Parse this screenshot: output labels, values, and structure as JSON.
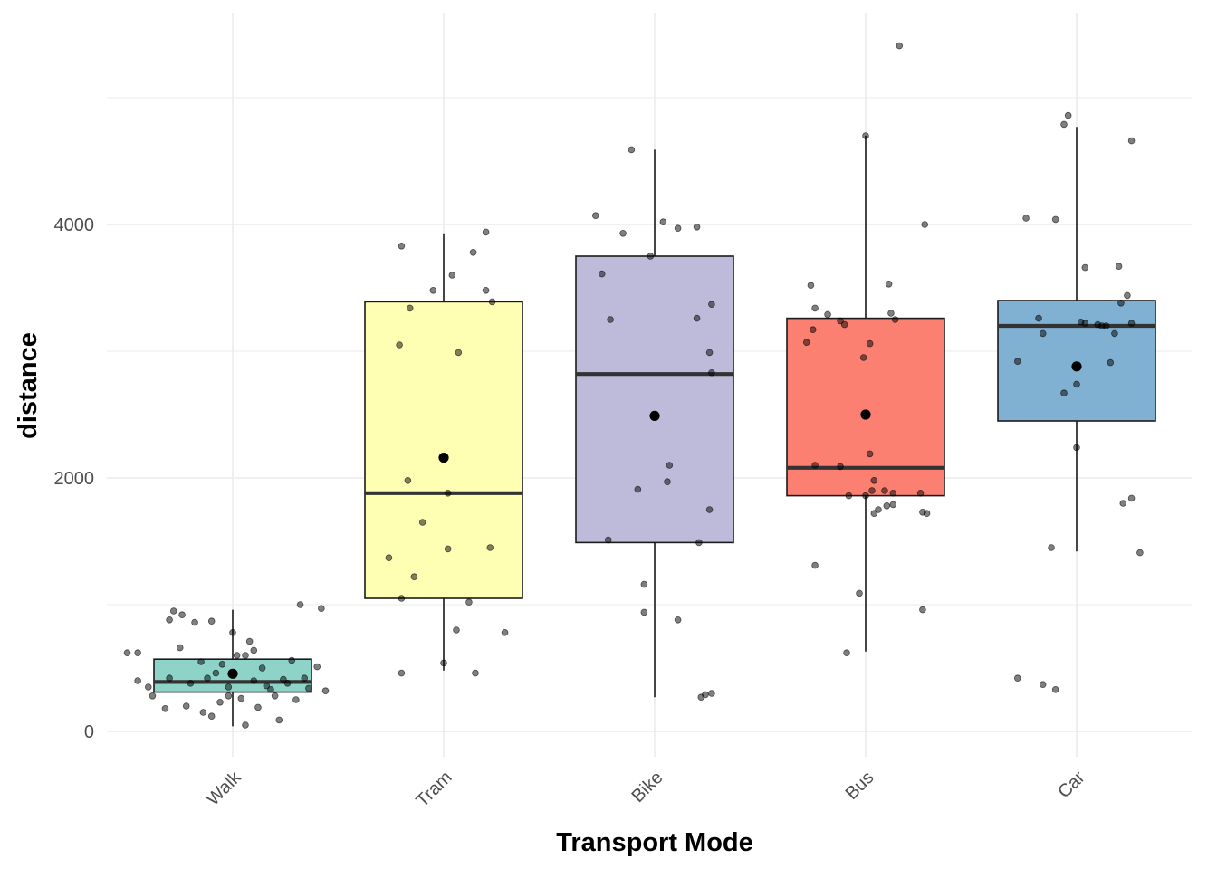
{
  "chart_data": {
    "type": "boxplot",
    "xlabel": "Transport Mode",
    "ylabel": "distance",
    "ylim": [
      -250,
      5650
    ],
    "yticks": [
      0,
      2000,
      4000
    ],
    "y_tick_labels": [
      "0",
      "2000",
      "4000"
    ],
    "grid": true,
    "legend": "none",
    "point_color": "#000000",
    "categories": [
      "Walk",
      "Tram",
      "Bike",
      "Bus",
      "Car"
    ],
    "boxes": [
      {
        "category": "Walk",
        "color": "#8DD3C7",
        "whisker_low": 40,
        "q1": 310,
        "median": 390,
        "q3": 570,
        "whisker_high": 960,
        "mean": 455,
        "points": [
          [
            -0.5,
            620
          ],
          [
            -0.28,
            950
          ],
          [
            -0.24,
            920
          ],
          [
            -0.18,
            860
          ],
          [
            -0.45,
            620
          ],
          [
            -0.3,
            880
          ],
          [
            -0.1,
            870
          ],
          [
            0.0,
            780
          ],
          [
            0.08,
            710
          ],
          [
            0.32,
            1000
          ],
          [
            0.42,
            970
          ],
          [
            -0.25,
            660
          ],
          [
            -0.15,
            550
          ],
          [
            -0.05,
            530
          ],
          [
            0.06,
            600
          ],
          [
            0.14,
            500
          ],
          [
            0.24,
            410
          ],
          [
            0.28,
            560
          ],
          [
            0.4,
            510
          ],
          [
            -0.4,
            350
          ],
          [
            -0.3,
            420
          ],
          [
            -0.2,
            380
          ],
          [
            -0.12,
            420
          ],
          [
            -0.02,
            350
          ],
          [
            0.1,
            400
          ],
          [
            0.18,
            330
          ],
          [
            0.26,
            380
          ],
          [
            0.34,
            420
          ],
          [
            0.36,
            340
          ],
          [
            -0.38,
            280
          ],
          [
            -0.22,
            200
          ],
          [
            -0.14,
            150
          ],
          [
            -0.06,
            230
          ],
          [
            0.04,
            260
          ],
          [
            0.12,
            190
          ],
          [
            0.2,
            280
          ],
          [
            0.3,
            250
          ],
          [
            -0.32,
            180
          ],
          [
            -0.1,
            120
          ],
          [
            0.06,
            50
          ],
          [
            0.22,
            90
          ],
          [
            -0.45,
            400
          ],
          [
            -0.02,
            280
          ],
          [
            0.16,
            360
          ],
          [
            0.44,
            320
          ],
          [
            -0.08,
            460
          ],
          [
            0.02,
            600
          ],
          [
            0.1,
            640
          ]
        ]
      },
      {
        "category": "Tram",
        "color": "#FFFFB3",
        "whisker_low": 480,
        "q1": 1050,
        "median": 1880,
        "q3": 3390,
        "whisker_high": 3930,
        "mean": 2160,
        "points": [
          [
            -0.2,
            3830
          ],
          [
            0.14,
            3780
          ],
          [
            0.2,
            3940
          ],
          [
            0.04,
            3600
          ],
          [
            -0.05,
            3480
          ],
          [
            0.2,
            3480
          ],
          [
            0.23,
            3390
          ],
          [
            -0.16,
            3340
          ],
          [
            -0.21,
            3050
          ],
          [
            0.07,
            2990
          ],
          [
            -0.17,
            1980
          ],
          [
            0.02,
            1880
          ],
          [
            -0.1,
            1650
          ],
          [
            0.02,
            1440
          ],
          [
            0.22,
            1450
          ],
          [
            -0.26,
            1370
          ],
          [
            -0.14,
            1220
          ],
          [
            0.12,
            1020
          ],
          [
            -0.2,
            1050
          ],
          [
            0.06,
            800
          ],
          [
            0.29,
            780
          ],
          [
            0.0,
            540
          ],
          [
            -0.2,
            460
          ],
          [
            0.15,
            460
          ]
        ]
      },
      {
        "category": "Bike",
        "color": "#BEBADA",
        "whisker_low": 270,
        "q1": 1490,
        "median": 2820,
        "q3": 3750,
        "whisker_high": 4590,
        "mean": 2490,
        "points": [
          [
            -0.11,
            4590
          ],
          [
            -0.28,
            4070
          ],
          [
            -0.15,
            3930
          ],
          [
            0.04,
            4020
          ],
          [
            0.11,
            3970
          ],
          [
            0.2,
            3980
          ],
          [
            -0.02,
            3750
          ],
          [
            -0.25,
            3610
          ],
          [
            0.27,
            3370
          ],
          [
            -0.21,
            3250
          ],
          [
            0.2,
            3260
          ],
          [
            0.26,
            2990
          ],
          [
            0.27,
            2830
          ],
          [
            0.07,
            2100
          ],
          [
            0.06,
            1970
          ],
          [
            -0.08,
            1910
          ],
          [
            0.26,
            1750
          ],
          [
            -0.22,
            1510
          ],
          [
            0.21,
            1490
          ],
          [
            -0.05,
            1160
          ],
          [
            -0.05,
            940
          ],
          [
            0.11,
            880
          ],
          [
            0.24,
            290
          ],
          [
            0.22,
            270
          ],
          [
            0.27,
            300
          ]
        ]
      },
      {
        "category": "Bus",
        "color": "#FB8072",
        "whisker_low": 630,
        "q1": 1860,
        "median": 2080,
        "q3": 3260,
        "whisker_high": 4700,
        "mean": 2500,
        "points": [
          [
            0.16,
            5410
          ],
          [
            0.0,
            4700
          ],
          [
            0.28,
            4000
          ],
          [
            -0.26,
            3520
          ],
          [
            0.11,
            3530
          ],
          [
            -0.24,
            3340
          ],
          [
            -0.18,
            3290
          ],
          [
            0.12,
            3300
          ],
          [
            0.14,
            3250
          ],
          [
            -0.25,
            3170
          ],
          [
            -0.12,
            3240
          ],
          [
            -0.1,
            3210
          ],
          [
            -0.28,
            3070
          ],
          [
            0.02,
            3060
          ],
          [
            -0.01,
            2950
          ],
          [
            0.02,
            2190
          ],
          [
            -0.24,
            2100
          ],
          [
            -0.12,
            2090
          ],
          [
            0.04,
            1980
          ],
          [
            0.09,
            1900
          ],
          [
            0.13,
            1880
          ],
          [
            0.26,
            1880
          ],
          [
            0.0,
            1860
          ],
          [
            -0.08,
            1860
          ],
          [
            0.13,
            1790
          ],
          [
            0.06,
            1750
          ],
          [
            0.27,
            1730
          ],
          [
            0.29,
            1720
          ],
          [
            0.04,
            1720
          ],
          [
            -0.24,
            1310
          ],
          [
            -0.03,
            1090
          ],
          [
            0.27,
            960
          ],
          [
            -0.09,
            620
          ],
          [
            0.03,
            1900
          ],
          [
            0.1,
            1780
          ]
        ]
      },
      {
        "category": "Car",
        "color": "#80B1D3",
        "whisker_low": 1420,
        "q1": 2450,
        "median": 3200,
        "q3": 3400,
        "whisker_high": 4770,
        "mean": 2880,
        "points": [
          [
            -0.04,
            4860
          ],
          [
            -0.06,
            4790
          ],
          [
            0.26,
            4660
          ],
          [
            -0.1,
            4040
          ],
          [
            -0.24,
            4050
          ],
          [
            0.04,
            3660
          ],
          [
            0.2,
            3670
          ],
          [
            0.24,
            3440
          ],
          [
            0.21,
            3380
          ],
          [
            -0.18,
            3260
          ],
          [
            0.02,
            3230
          ],
          [
            0.14,
            3200
          ],
          [
            -0.16,
            3140
          ],
          [
            0.1,
            3210
          ],
          [
            0.12,
            3200
          ],
          [
            0.18,
            3140
          ],
          [
            0.26,
            3220
          ],
          [
            -0.28,
            2920
          ],
          [
            0.16,
            2910
          ],
          [
            -0.06,
            2670
          ],
          [
            0.0,
            2740
          ],
          [
            0.0,
            2240
          ],
          [
            0.26,
            1840
          ],
          [
            0.22,
            1800
          ],
          [
            -0.12,
            1450
          ],
          [
            0.3,
            1410
          ],
          [
            -0.28,
            420
          ],
          [
            -0.16,
            370
          ],
          [
            -0.1,
            330
          ],
          [
            0.04,
            3220
          ]
        ]
      }
    ]
  }
}
